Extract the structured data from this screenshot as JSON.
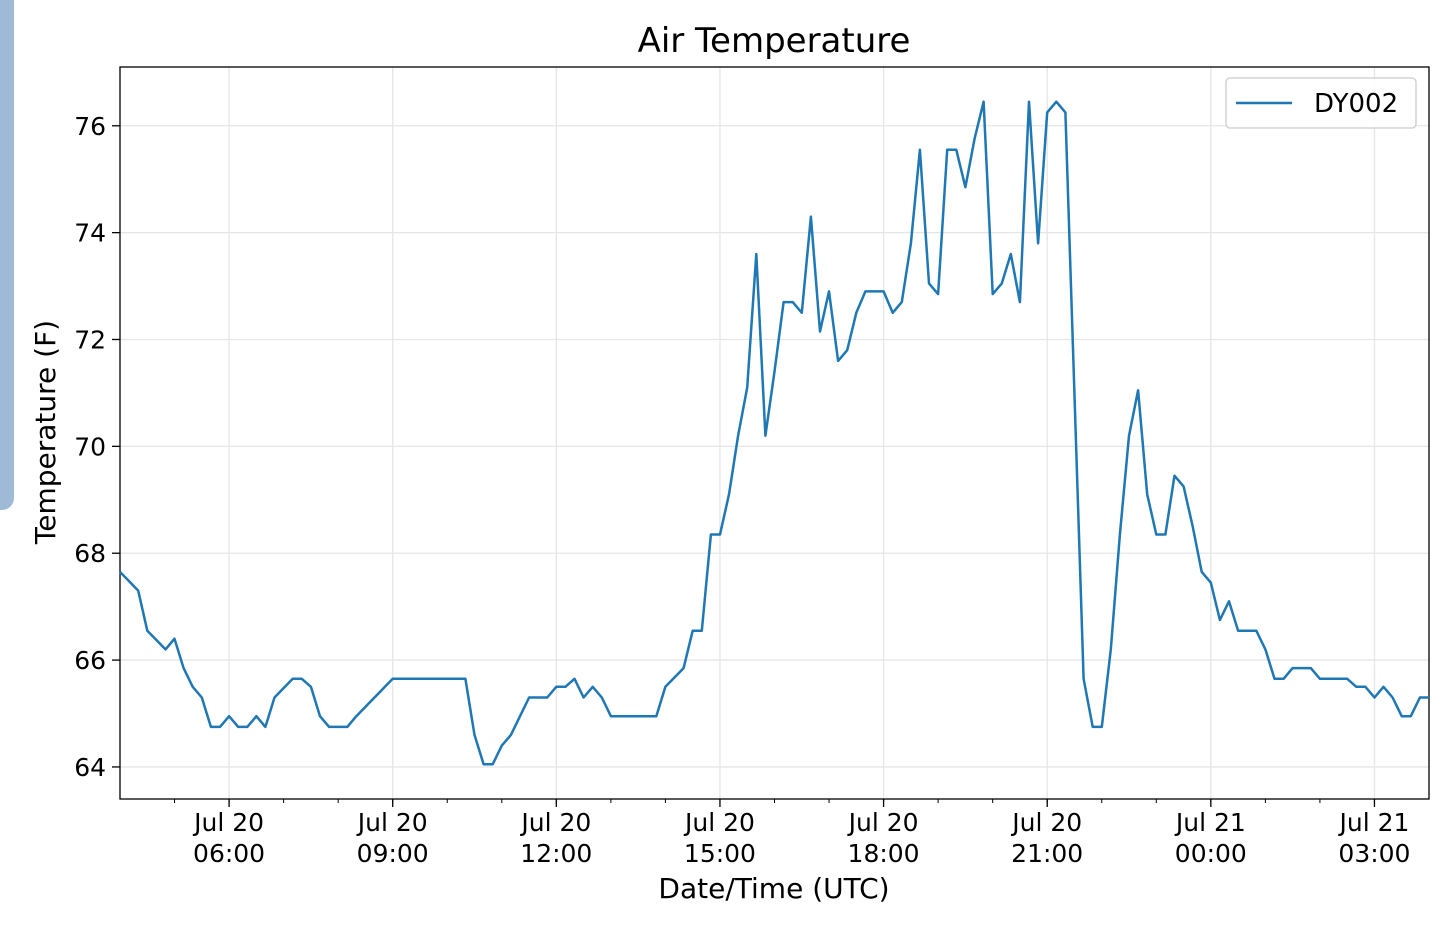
{
  "chart_data": {
    "type": "line",
    "title": "Air Temperature",
    "xlabel": "Date/Time (UTC)",
    "ylabel": "Temperature (F)",
    "ylim": [
      63.4,
      77.1
    ],
    "xlim": [
      "2017-07-20 04:00",
      "2017-07-21 04:00"
    ],
    "y_ticks": [
      64,
      66,
      68,
      70,
      72,
      74,
      76
    ],
    "x_ticks": [
      {
        "t": "2017-07-20 06:00",
        "label": [
          "Jul 20",
          "06:00"
        ]
      },
      {
        "t": "2017-07-20 09:00",
        "label": [
          "Jul 20",
          "09:00"
        ]
      },
      {
        "t": "2017-07-20 12:00",
        "label": [
          "Jul 20",
          "12:00"
        ]
      },
      {
        "t": "2017-07-20 15:00",
        "label": [
          "Jul 20",
          "15:00"
        ]
      },
      {
        "t": "2017-07-20 18:00",
        "label": [
          "Jul 20",
          "18:00"
        ]
      },
      {
        "t": "2017-07-20 21:00",
        "label": [
          "Jul 20",
          "21:00"
        ]
      },
      {
        "t": "2017-07-21 00:00",
        "label": [
          "Jul 21",
          "00:00"
        ]
      },
      {
        "t": "2017-07-21 03:00",
        "label": [
          "Jul 21",
          "03:00"
        ]
      }
    ],
    "minor_x_ticks_minutes": 60,
    "grid": true,
    "legend": "top-right",
    "series": [
      {
        "name": "DY002",
        "color": "#1f77b4",
        "x": [
          "2017-07-20 04:00",
          "2017-07-20 04:20",
          "2017-07-20 04:30",
          "2017-07-20 04:50",
          "2017-07-20 05:00",
          "2017-07-20 05:10",
          "2017-07-20 05:20",
          "2017-07-20 05:30",
          "2017-07-20 05:40",
          "2017-07-20 05:50",
          "2017-07-20 06:00",
          "2017-07-20 06:10",
          "2017-07-20 06:20",
          "2017-07-20 06:30",
          "2017-07-20 06:40",
          "2017-07-20 06:50",
          "2017-07-20 07:10",
          "2017-07-20 07:20",
          "2017-07-20 07:30",
          "2017-07-20 07:40",
          "2017-07-20 07:50",
          "2017-07-20 08:10",
          "2017-07-20 08:20",
          "2017-07-20 08:40",
          "2017-07-20 09:00",
          "2017-07-20 10:20",
          "2017-07-20 10:30",
          "2017-07-20 10:40",
          "2017-07-20 10:50",
          "2017-07-20 11:00",
          "2017-07-20 11:10",
          "2017-07-20 11:30",
          "2017-07-20 11:50",
          "2017-07-20 12:00",
          "2017-07-20 12:10",
          "2017-07-20 12:20",
          "2017-07-20 12:30",
          "2017-07-20 12:40",
          "2017-07-20 12:50",
          "2017-07-20 13:00",
          "2017-07-20 13:10",
          "2017-07-20 13:50",
          "2017-07-20 14:00",
          "2017-07-20 14:20",
          "2017-07-20 14:30",
          "2017-07-20 14:40",
          "2017-07-20 14:50",
          "2017-07-20 15:00",
          "2017-07-20 15:10",
          "2017-07-20 15:20",
          "2017-07-20 15:30",
          "2017-07-20 15:40",
          "2017-07-20 15:50",
          "2017-07-20 16:00",
          "2017-07-20 16:10",
          "2017-07-20 16:20",
          "2017-07-20 16:30",
          "2017-07-20 16:40",
          "2017-07-20 16:50",
          "2017-07-20 17:00",
          "2017-07-20 17:10",
          "2017-07-20 17:20",
          "2017-07-20 17:30",
          "2017-07-20 17:40",
          "2017-07-20 17:50",
          "2017-07-20 18:00",
          "2017-07-20 18:10",
          "2017-07-20 18:20",
          "2017-07-20 18:30",
          "2017-07-20 18:40",
          "2017-07-20 18:50",
          "2017-07-20 19:00",
          "2017-07-20 19:10",
          "2017-07-20 19:20",
          "2017-07-20 19:30",
          "2017-07-20 19:40",
          "2017-07-20 19:50",
          "2017-07-20 20:00",
          "2017-07-20 20:10",
          "2017-07-20 20:20",
          "2017-07-20 20:30",
          "2017-07-20 20:40",
          "2017-07-20 20:50",
          "2017-07-20 21:00",
          "2017-07-20 21:10",
          "2017-07-20 21:20",
          "2017-07-20 21:40",
          "2017-07-20 21:50",
          "2017-07-20 22:00",
          "2017-07-20 22:10",
          "2017-07-20 22:20",
          "2017-07-20 22:30",
          "2017-07-20 22:40",
          "2017-07-20 22:50",
          "2017-07-20 23:00",
          "2017-07-20 23:10",
          "2017-07-20 23:20",
          "2017-07-20 23:30",
          "2017-07-20 23:40",
          "2017-07-20 23:50",
          "2017-07-21 00:00",
          "2017-07-21 00:10",
          "2017-07-21 00:20",
          "2017-07-21 00:30",
          "2017-07-21 00:40",
          "2017-07-21 00:50",
          "2017-07-21 01:00",
          "2017-07-21 01:10",
          "2017-07-21 01:20",
          "2017-07-21 01:30",
          "2017-07-21 01:40",
          "2017-07-21 01:50",
          "2017-07-21 02:00",
          "2017-07-21 02:10",
          "2017-07-21 02:20",
          "2017-07-21 02:30",
          "2017-07-21 02:40",
          "2017-07-21 02:50",
          "2017-07-21 03:00",
          "2017-07-21 03:10",
          "2017-07-21 03:20",
          "2017-07-21 03:30",
          "2017-07-21 03:40",
          "2017-07-21 03:50",
          "2017-07-21 04:00"
        ],
        "values": [
          67.65,
          67.3,
          66.55,
          66.2,
          66.4,
          65.85,
          65.5,
          65.3,
          64.75,
          64.75,
          64.95,
          64.75,
          64.75,
          64.95,
          64.75,
          65.3,
          65.65,
          65.65,
          65.5,
          64.95,
          64.75,
          64.75,
          64.95,
          65.3,
          65.65,
          65.65,
          64.6,
          64.05,
          64.05,
          64.4,
          64.6,
          65.3,
          65.3,
          65.5,
          65.5,
          65.65,
          65.3,
          65.5,
          65.3,
          64.95,
          64.95,
          64.95,
          65.5,
          65.85,
          66.55,
          66.55,
          68.35,
          68.35,
          69.1,
          70.2,
          71.1,
          73.6,
          70.2,
          71.4,
          72.7,
          72.7,
          72.5,
          74.3,
          72.15,
          72.9,
          71.6,
          71.8,
          72.5,
          72.9,
          72.9,
          72.9,
          72.5,
          72.7,
          73.8,
          75.55,
          73.05,
          72.85,
          75.55,
          75.55,
          74.85,
          75.75,
          76.45,
          72.85,
          73.05,
          73.6,
          72.7,
          76.45,
          73.8,
          76.25,
          76.45,
          76.25,
          65.65,
          64.75,
          64.75,
          66.2,
          68.35,
          70.2,
          71.05,
          69.1,
          68.35,
          68.35,
          69.45,
          69.25,
          68.5,
          67.65,
          67.45,
          66.75,
          67.1,
          66.55,
          66.55,
          66.55,
          66.2,
          65.65,
          65.65,
          65.85,
          65.85,
          65.85,
          65.65,
          65.65,
          65.65,
          65.65,
          65.5,
          65.5,
          65.3,
          65.5,
          65.3,
          64.95,
          64.95,
          65.3,
          65.3
        ]
      }
    ]
  }
}
